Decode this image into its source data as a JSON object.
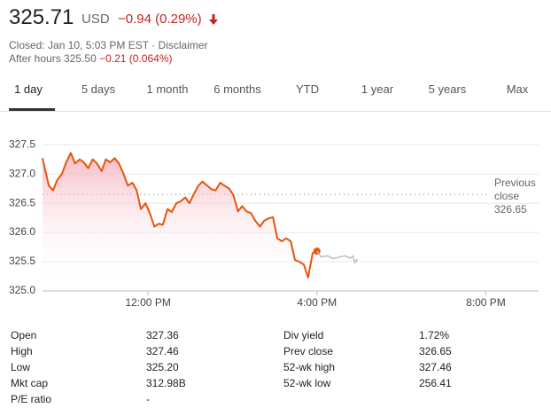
{
  "header": {
    "price": "325.71",
    "currency": "USD",
    "change": "−0.94 (0.29%)",
    "status": "Closed: Jan 10, 5:03 PM EST · Disclaimer",
    "after_hours_label": "After hours",
    "after_hours_price": "325.50",
    "after_hours_change": "−0.21 (0.064%)"
  },
  "tabs": [
    "1 day",
    "5 days",
    "1 month",
    "6 months",
    "YTD",
    "1 year",
    "5 years",
    "Max"
  ],
  "chart_data": {
    "type": "line",
    "x": [
      9.5,
      9.65,
      9.75,
      9.85,
      9.96,
      10.06,
      10.17,
      10.27,
      10.38,
      10.48,
      10.58,
      10.69,
      10.79,
      10.9,
      11,
      11.1,
      11.21,
      11.31,
      11.42,
      11.52,
      11.63,
      11.73,
      11.83,
      11.94,
      12.04,
      12.15,
      12.25,
      12.35,
      12.46,
      12.56,
      12.67,
      12.77,
      12.88,
      12.98,
      13.08,
      13.19,
      13.29,
      13.4,
      13.5,
      13.6,
      13.71,
      13.81,
      13.92,
      14.02,
      14.13,
      14.23,
      14.33,
      14.44,
      14.54,
      14.65,
      14.75,
      14.85,
      14.96,
      15.06,
      15.17,
      15.27,
      15.38,
      15.48,
      15.58,
      15.69,
      15.79,
      15.9,
      16,
      16.1,
      16.25,
      16.38,
      16.52,
      16.67,
      16.79,
      16.85,
      16.9,
      16.96
    ],
    "series": [
      {
        "color": "#e8530e",
        "values": [
          327.27,
          326.8,
          326.72,
          326.9,
          327.0,
          327.2,
          327.36,
          327.18,
          327.25,
          327.2,
          327.1,
          327.25,
          327.18,
          327.05,
          327.25,
          327.2,
          327.27,
          327.18,
          327.0,
          326.8,
          326.85,
          326.72,
          326.4,
          326.5,
          326.33,
          326.1,
          326.15,
          326.13,
          326.4,
          326.35,
          326.5,
          326.53,
          326.6,
          326.5,
          326.65,
          326.8,
          326.87,
          326.8,
          326.74,
          326.72,
          326.85,
          326.8,
          326.75,
          326.64,
          326.36,
          326.45,
          326.36,
          326.33,
          326.2,
          326.1,
          326.2,
          326.24,
          326.26,
          325.9,
          325.85,
          325.9,
          325.85,
          325.53,
          325.5,
          325.45,
          325.23,
          325.65,
          325.68,
          null,
          null,
          null,
          null,
          null,
          null,
          null,
          null,
          null
        ]
      },
      {
        "color": "#bdbdbd",
        "values": [
          null,
          null,
          null,
          null,
          null,
          null,
          null,
          null,
          null,
          null,
          null,
          null,
          null,
          null,
          null,
          null,
          null,
          null,
          null,
          null,
          null,
          null,
          null,
          null,
          null,
          null,
          null,
          null,
          null,
          null,
          null,
          null,
          null,
          null,
          null,
          null,
          null,
          null,
          null,
          null,
          null,
          null,
          null,
          null,
          null,
          null,
          null,
          null,
          null,
          null,
          null,
          null,
          null,
          null,
          null,
          null,
          null,
          null,
          null,
          null,
          null,
          null,
          325.68,
          325.58,
          325.6,
          325.55,
          325.58,
          325.6,
          325.56,
          325.6,
          325.48,
          325.55
        ]
      }
    ],
    "xlim": [
      9.5,
      21.25
    ],
    "xticks": [
      {
        "value": 12,
        "label": "12:00 PM"
      },
      {
        "value": 16,
        "label": "4:00 PM"
      },
      {
        "value": 20,
        "label": "8:00 PM"
      }
    ],
    "ylim": [
      325.0,
      327.7
    ],
    "yticks": [
      {
        "value": 325.0,
        "label": "325.0"
      },
      325.5,
      {
        "value": 326.0,
        "label": "326.0"
      },
      326.5,
      {
        "value": 327.0,
        "label": "327.0"
      },
      327.5
    ],
    "grid": true,
    "reference_line": {
      "label": "Previous close",
      "value": 326.65
    }
  },
  "stats": {
    "rows": [
      [
        "Open",
        "327.36",
        "Div yield",
        "1.72%"
      ],
      [
        "High",
        "327.46",
        "Prev close",
        "326.65"
      ],
      [
        "Low",
        "325.20",
        "52-wk high",
        "327.46"
      ],
      [
        "Mkt cap",
        "312.98B",
        "52-wk low",
        "256.41"
      ],
      [
        "P/E ratio",
        "-"
      ]
    ]
  }
}
